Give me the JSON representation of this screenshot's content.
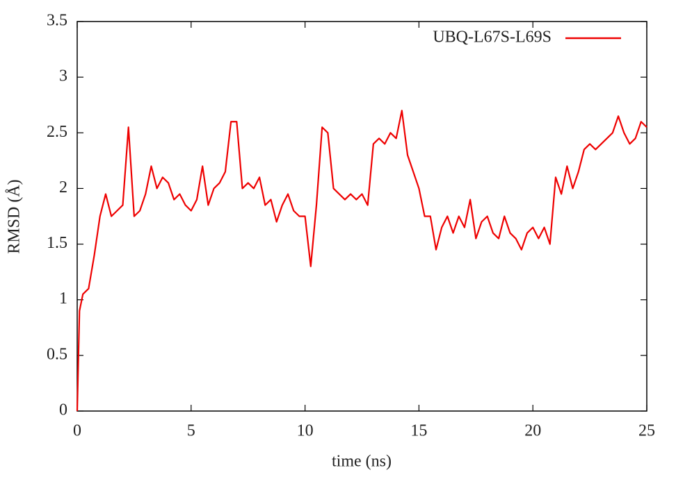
{
  "chart_data": {
    "type": "line",
    "x_label": "time (ns)",
    "y_label": "RMSD (Å)",
    "x": [
      0,
      0.1,
      0.25,
      0.5,
      0.75,
      1,
      1.25,
      1.5,
      1.75,
      2,
      2.25,
      2.5,
      2.75,
      3,
      3.25,
      3.5,
      3.75,
      4,
      4.25,
      4.5,
      4.75,
      5,
      5.25,
      5.5,
      5.75,
      6,
      6.25,
      6.5,
      6.75,
      7,
      7.25,
      7.5,
      7.75,
      8,
      8.25,
      8.5,
      8.75,
      9,
      9.25,
      9.5,
      9.75,
      10,
      10.25,
      10.5,
      10.75,
      11,
      11.25,
      11.5,
      11.75,
      12,
      12.25,
      12.5,
      12.75,
      13,
      13.25,
      13.5,
      13.75,
      14,
      14.25,
      14.5,
      14.75,
      15,
      15.25,
      15.5,
      15.75,
      16,
      16.25,
      16.5,
      16.75,
      17,
      17.25,
      17.5,
      17.75,
      18,
      18.25,
      18.5,
      18.75,
      19,
      19.25,
      19.5,
      19.75,
      20,
      20.25,
      20.5,
      20.75,
      21,
      21.25,
      21.5,
      21.75,
      22,
      22.25,
      22.5,
      22.75,
      23,
      23.25,
      23.5,
      23.75,
      24,
      24.25,
      24.5,
      24.75,
      25
    ],
    "series": [
      {
        "name": "UBQ-L67S-L69S",
        "color": "#ee0000",
        "values": [
          0,
          0.9,
          1.05,
          1.1,
          1.4,
          1.75,
          1.95,
          1.75,
          1.8,
          1.85,
          2.55,
          1.75,
          1.8,
          1.95,
          2.2,
          2.0,
          2.1,
          2.05,
          1.9,
          1.95,
          1.85,
          1.8,
          1.9,
          2.2,
          1.85,
          2.0,
          2.05,
          2.15,
          2.6,
          2.6,
          2.0,
          2.05,
          2.0,
          2.1,
          1.85,
          1.9,
          1.7,
          1.85,
          1.95,
          1.8,
          1.75,
          1.75,
          1.3,
          1.85,
          2.55,
          2.5,
          2.0,
          1.95,
          1.9,
          1.95,
          1.9,
          1.95,
          1.85,
          2.4,
          2.45,
          2.4,
          2.5,
          2.45,
          2.7,
          2.3,
          2.15,
          2.0,
          1.75,
          1.75,
          1.45,
          1.65,
          1.75,
          1.6,
          1.75,
          1.65,
          1.9,
          1.55,
          1.7,
          1.75,
          1.6,
          1.55,
          1.75,
          1.6,
          1.55,
          1.45,
          1.6,
          1.65,
          1.55,
          1.65,
          1.5,
          2.1,
          1.95,
          2.2,
          2.0,
          2.15,
          2.35,
          2.4,
          2.35,
          2.4,
          2.45,
          2.5,
          2.65,
          2.5,
          2.4,
          2.45,
          2.6,
          2.55
        ]
      }
    ],
    "xlim": [
      0,
      25
    ],
    "xticks": [
      0,
      5,
      10,
      15,
      20,
      25
    ],
    "ylim": [
      0,
      3.5
    ],
    "yticks": [
      0,
      0.5,
      1,
      1.5,
      2,
      2.5,
      3,
      3.5
    ],
    "grid": false,
    "legend": "top-right"
  }
}
